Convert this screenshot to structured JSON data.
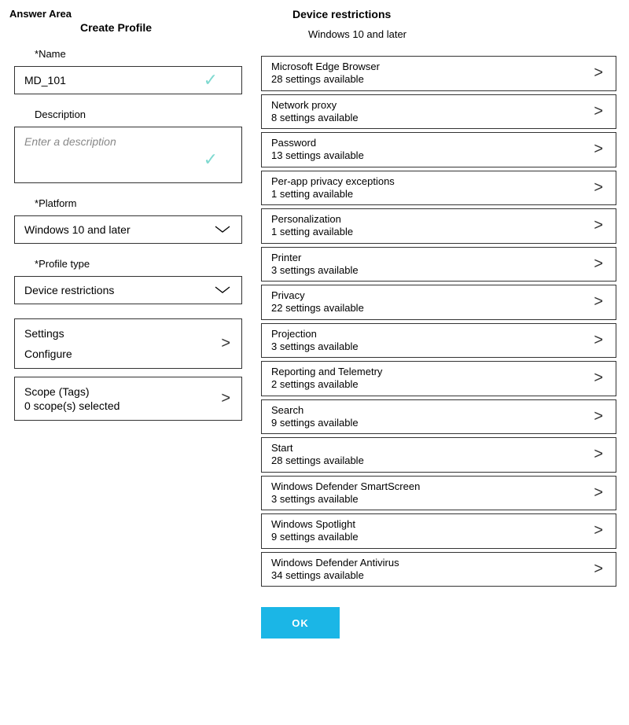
{
  "header": {
    "answer_area": "Answer Area",
    "create_profile": "Create Profile"
  },
  "left": {
    "name_label": "Name",
    "name_value": "MD_101",
    "description_label": "Description",
    "description_placeholder": "Enter a description",
    "platform_label": "Platform",
    "platform_value": "Windows 10 and later",
    "profile_type_label": "Profile type",
    "profile_type_value": "Device restrictions",
    "settings": {
      "title": "Settings",
      "sub": "Configure"
    },
    "scope": {
      "title": "Scope (Tags)",
      "sub": "0 scope(s) selected"
    }
  },
  "right": {
    "title": "Device restrictions",
    "subtitle": "Windows 10 and later",
    "categories": [
      {
        "title": "Microsoft Edge Browser",
        "sub": "28 settings available"
      },
      {
        "title": "Network proxy",
        "sub": "8 settings available"
      },
      {
        "title": "Password",
        "sub": "13 settings available"
      },
      {
        "title": "Per-app privacy exceptions",
        "sub": "1 setting available"
      },
      {
        "title": "Personalization",
        "sub": "1 setting available"
      },
      {
        "title": "Printer",
        "sub": "3 settings available"
      },
      {
        "title": "Privacy",
        "sub": "22 settings available"
      },
      {
        "title": "Projection",
        "sub": "3 settings available"
      },
      {
        "title": "Reporting and Telemetry",
        "sub": "2 settings available"
      },
      {
        "title": "Search",
        "sub": "9 settings available"
      },
      {
        "title": "Start",
        "sub": "28 settings available"
      },
      {
        "title": "Windows Defender SmartScreen",
        "sub": "3 settings available"
      },
      {
        "title": "Windows Spotlight",
        "sub": "9 settings available"
      },
      {
        "title": "Windows Defender Antivirus",
        "sub": "34 settings available"
      }
    ],
    "ok": "OK"
  },
  "colors": {
    "ok_button": "#1bb6e6",
    "check": "#7fd9d0",
    "border": "#333333"
  }
}
